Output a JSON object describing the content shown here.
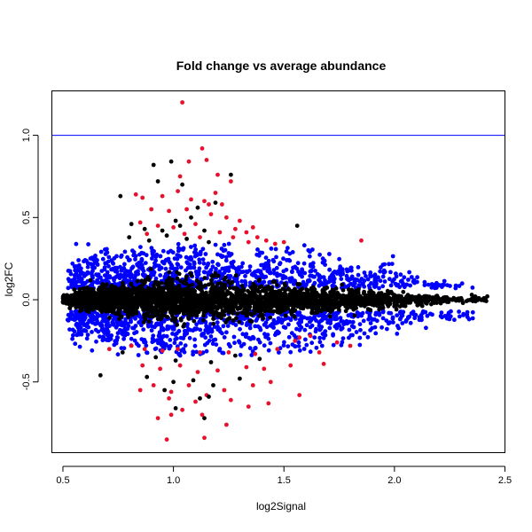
{
  "chart_data": {
    "type": "scatter",
    "title": "Fold change vs average abundance",
    "xlabel": "log2Signal",
    "ylabel": "log2FC",
    "xlim": [
      0.45,
      2.5
    ],
    "ylim": [
      -0.93,
      1.27
    ],
    "xticks": [
      "0.5",
      "1.0",
      "1.5",
      "2.0",
      "2.5"
    ],
    "yticks": [
      "-0.5",
      "0.0",
      "0.5",
      "1.0"
    ],
    "reference_line": {
      "y": 1.0,
      "color": "#0000ff"
    },
    "grid": false,
    "legend": "none",
    "colors": {
      "black": "#000000",
      "blue": "#0000ff",
      "red": "#e8112d"
    },
    "series": [
      {
        "color": "#e8112d",
        "points": [
          [
            1.04,
            1.2
          ],
          [
            1.13,
            0.92
          ],
          [
            1.15,
            0.85
          ],
          [
            1.07,
            0.84
          ],
          [
            1.03,
            0.75
          ],
          [
            1.2,
            0.76
          ],
          [
            1.26,
            0.72
          ],
          [
            1.19,
            0.65
          ],
          [
            0.83,
            0.64
          ],
          [
            0.86,
            0.62
          ],
          [
            0.95,
            0.63
          ],
          [
            1.02,
            0.66
          ],
          [
            1.08,
            0.61
          ],
          [
            1.14,
            0.6
          ],
          [
            1.16,
            0.58
          ],
          [
            1.22,
            0.58
          ],
          [
            0.9,
            0.55
          ],
          [
            0.98,
            0.54
          ],
          [
            1.06,
            0.55
          ],
          [
            1.17,
            0.52
          ],
          [
            1.24,
            0.5
          ],
          [
            1.3,
            0.48
          ],
          [
            0.85,
            0.47
          ],
          [
            0.93,
            0.45
          ],
          [
            1.0,
            0.44
          ],
          [
            1.1,
            0.46
          ],
          [
            1.28,
            0.43
          ],
          [
            1.33,
            0.41
          ],
          [
            1.36,
            0.44
          ],
          [
            0.88,
            0.4
          ],
          [
            1.38,
            0.38
          ],
          [
            1.42,
            0.36
          ],
          [
            1.46,
            0.34
          ],
          [
            1.5,
            0.35
          ],
          [
            1.85,
            0.36
          ],
          [
            1.27,
            0.38
          ],
          [
            1.05,
            0.4
          ],
          [
            1.21,
            0.41
          ],
          [
            1.12,
            0.38
          ],
          [
            1.34,
            0.35
          ],
          [
            1.55,
            -0.25
          ],
          [
            1.62,
            -0.22
          ],
          [
            1.57,
            -0.23
          ],
          [
            1.74,
            -0.26
          ],
          [
            1.8,
            -0.28
          ],
          [
            0.71,
            -0.3
          ],
          [
            0.81,
            -0.28
          ],
          [
            0.87,
            -0.3
          ],
          [
            0.95,
            -0.31
          ],
          [
            1.02,
            -0.3
          ],
          [
            1.12,
            -0.32
          ],
          [
            1.25,
            -0.32
          ],
          [
            1.37,
            -0.33
          ],
          [
            1.47,
            -0.3
          ],
          [
            1.66,
            -0.32
          ],
          [
            0.86,
            -0.4
          ],
          [
            0.94,
            -0.42
          ],
          [
            1.03,
            -0.4
          ],
          [
            1.11,
            -0.44
          ],
          [
            1.2,
            -0.43
          ],
          [
            1.33,
            -0.41
          ],
          [
            1.41,
            -0.42
          ],
          [
            1.53,
            -0.4
          ],
          [
            1.68,
            -0.39
          ],
          [
            0.85,
            -0.55
          ],
          [
            0.91,
            -0.52
          ],
          [
            0.99,
            -0.56
          ],
          [
            1.07,
            -0.52
          ],
          [
            1.15,
            -0.58
          ],
          [
            1.23,
            -0.55
          ],
          [
            1.36,
            -0.52
          ],
          [
            1.44,
            -0.5
          ],
          [
            0.98,
            -0.6
          ],
          [
            1.1,
            -0.62
          ],
          [
            1.26,
            -0.61
          ],
          [
            1.43,
            -0.63
          ],
          [
            1.57,
            -0.58
          ],
          [
            0.93,
            -0.72
          ],
          [
            0.99,
            -0.7
          ],
          [
            1.04,
            -0.67
          ],
          [
            1.13,
            -0.7
          ],
          [
            1.34,
            -0.65
          ],
          [
            0.97,
            -0.85
          ],
          [
            1.14,
            -0.84
          ],
          [
            1.24,
            -0.76
          ]
        ]
      },
      {
        "color": "#000000",
        "points": [
          [
            0.91,
            0.82
          ],
          [
            0.99,
            0.84
          ],
          [
            1.26,
            0.76
          ],
          [
            1.04,
            0.7
          ],
          [
            0.76,
            0.63
          ],
          [
            0.93,
            0.72
          ],
          [
            1.19,
            0.59
          ],
          [
            1.11,
            0.56
          ],
          [
            1.56,
            0.45
          ],
          [
            1.08,
            0.5
          ],
          [
            1.01,
            0.48
          ],
          [
            0.81,
            0.46
          ],
          [
            0.87,
            0.43
          ],
          [
            0.95,
            0.42
          ],
          [
            1.03,
            0.45
          ],
          [
            1.14,
            0.42
          ],
          [
            0.8,
            0.38
          ],
          [
            0.89,
            0.36
          ],
          [
            0.97,
            0.39
          ],
          [
            1.06,
            0.37
          ],
          [
            1.16,
            0.35
          ],
          [
            0.77,
            -0.32
          ],
          [
            0.92,
            -0.35
          ],
          [
            1.01,
            -0.37
          ],
          [
            1.17,
            -0.38
          ],
          [
            1.28,
            -0.34
          ],
          [
            1.39,
            -0.36
          ],
          [
            0.67,
            -0.46
          ],
          [
            0.88,
            -0.47
          ],
          [
            1.0,
            -0.5
          ],
          [
            1.09,
            -0.49
          ],
          [
            1.18,
            -0.52
          ],
          [
            1.3,
            -0.48
          ],
          [
            0.96,
            -0.55
          ],
          [
            1.12,
            -0.6
          ],
          [
            1.01,
            -0.66
          ],
          [
            1.16,
            -0.59
          ],
          [
            1.14,
            -0.72
          ],
          [
            2.42,
            0.02
          ],
          [
            2.35,
            0.03
          ],
          [
            2.31,
            -0.02
          ]
        ]
      }
    ]
  }
}
